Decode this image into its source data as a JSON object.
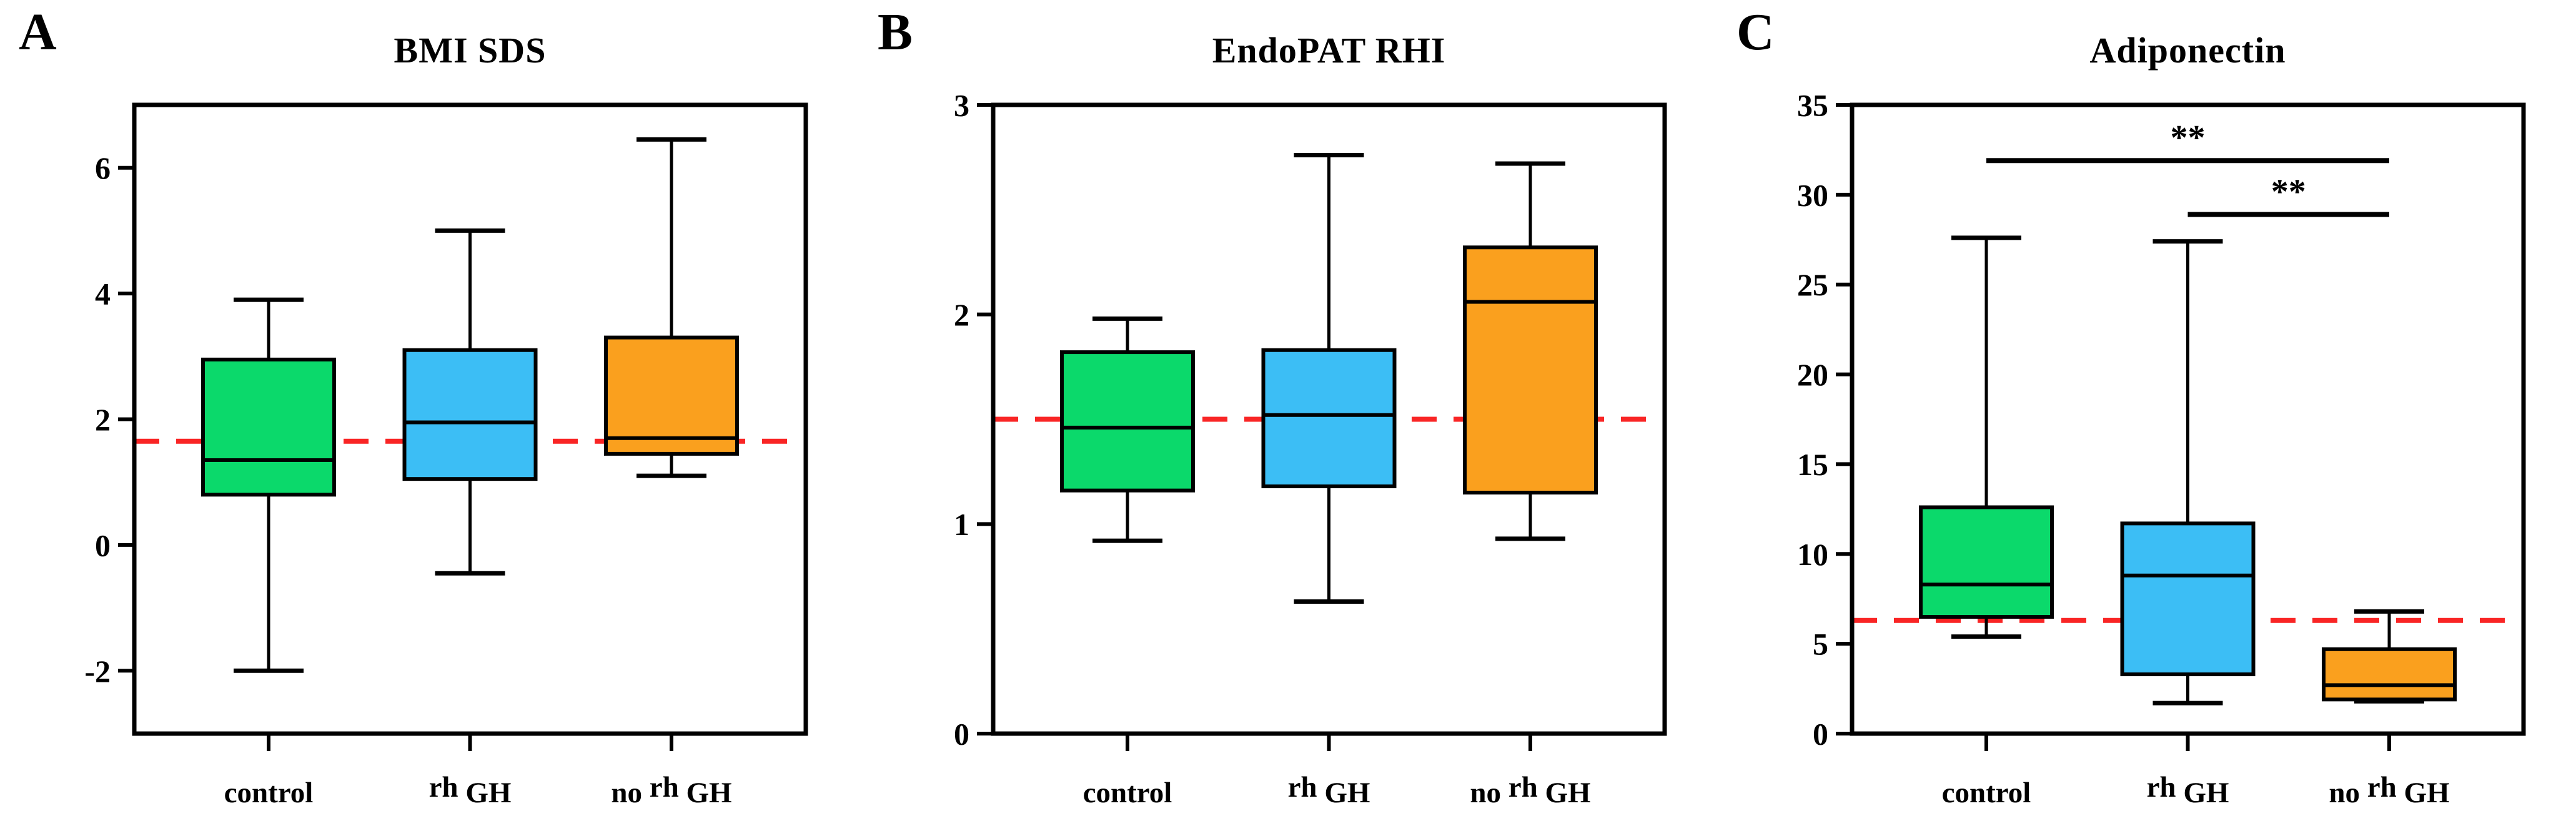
{
  "colors": {
    "control_fill": "#0BD96B",
    "rhgh_fill": "#3CBEF5",
    "norhgh_fill": "#FAA01E",
    "reference_line": "#F92525",
    "line": "#000000",
    "background": "#FFFFFF"
  },
  "chart_data": [
    {
      "type": "box",
      "panel_letter": "A",
      "title": "BMI SDS",
      "xlabel": "",
      "ylabel": "",
      "ylim": [
        -3,
        7
      ],
      "yticks": [
        -2,
        0,
        2,
        4,
        6
      ],
      "grid": false,
      "reference_line": 1.65,
      "categories": [
        "control",
        "rh GH",
        "no rh GH"
      ],
      "category_parts": [
        [
          {
            "text": "control",
            "raised": false
          }
        ],
        [
          {
            "text": "rh",
            "raised": true
          },
          {
            "text": " GH",
            "raised": false
          }
        ],
        [
          {
            "text": "no ",
            "raised": false
          },
          {
            "text": "rh",
            "raised": true
          },
          {
            "text": " GH",
            "raised": false
          }
        ]
      ],
      "series": [
        {
          "name": "control",
          "fill": "#0BD96B",
          "whisker_low": -2.0,
          "q1": 0.8,
          "median": 1.35,
          "q3": 2.95,
          "whisker_high": 3.9
        },
        {
          "name": "rh GH",
          "fill": "#3CBEF5",
          "whisker_low": -0.45,
          "q1": 1.05,
          "median": 1.95,
          "q3": 3.1,
          "whisker_high": 5.0
        },
        {
          "name": "no rh GH",
          "fill": "#FAA01E",
          "whisker_low": 1.1,
          "q1": 1.45,
          "median": 1.7,
          "q3": 3.3,
          "whisker_high": 6.45
        }
      ],
      "significance": []
    },
    {
      "type": "box",
      "panel_letter": "B",
      "title": "EndoPAT RHI",
      "xlabel": "",
      "ylabel": "",
      "ylim": [
        0,
        3
      ],
      "yticks": [
        0,
        1,
        2,
        3
      ],
      "grid": false,
      "reference_line": 1.5,
      "categories": [
        "control",
        "rh GH",
        "no rh GH"
      ],
      "category_parts": [
        [
          {
            "text": "control",
            "raised": false
          }
        ],
        [
          {
            "text": "rh",
            "raised": true
          },
          {
            "text": " GH",
            "raised": false
          }
        ],
        [
          {
            "text": "no ",
            "raised": false
          },
          {
            "text": "rh",
            "raised": true
          },
          {
            "text": " GH",
            "raised": false
          }
        ]
      ],
      "series": [
        {
          "name": "control",
          "fill": "#0BD96B",
          "whisker_low": 0.92,
          "q1": 1.16,
          "median": 1.46,
          "q3": 1.82,
          "whisker_high": 1.98
        },
        {
          "name": "rh GH",
          "fill": "#3CBEF5",
          "whisker_low": 0.63,
          "q1": 1.18,
          "median": 1.52,
          "q3": 1.83,
          "whisker_high": 2.76
        },
        {
          "name": "no rh GH",
          "fill": "#FAA01E",
          "whisker_low": 0.93,
          "q1": 1.15,
          "median": 2.06,
          "q3": 2.32,
          "whisker_high": 2.72
        }
      ],
      "significance": []
    },
    {
      "type": "box",
      "panel_letter": "C",
      "title": "Adiponectin",
      "xlabel": "",
      "ylabel": "",
      "ylim": [
        0,
        35
      ],
      "yticks": [
        0,
        5,
        10,
        15,
        20,
        25,
        30,
        35
      ],
      "grid": false,
      "reference_line": 6.3,
      "categories": [
        "control",
        "rh GH",
        "no rh GH"
      ],
      "category_parts": [
        [
          {
            "text": "control",
            "raised": false
          }
        ],
        [
          {
            "text": "rh",
            "raised": true
          },
          {
            "text": " GH",
            "raised": false
          }
        ],
        [
          {
            "text": "no ",
            "raised": false
          },
          {
            "text": "rh",
            "raised": true
          },
          {
            "text": " GH",
            "raised": false
          }
        ]
      ],
      "series": [
        {
          "name": "control",
          "fill": "#0BD96B",
          "whisker_low": 5.4,
          "q1": 6.5,
          "median": 8.3,
          "q3": 12.6,
          "whisker_high": 27.6
        },
        {
          "name": "rh GH",
          "fill": "#3CBEF5",
          "whisker_low": 1.7,
          "q1": 3.3,
          "median": 8.8,
          "q3": 11.7,
          "whisker_high": 27.4
        },
        {
          "name": "no rh GH",
          "fill": "#FAA01E",
          "whisker_low": 1.8,
          "q1": 1.9,
          "median": 2.7,
          "q3": 4.7,
          "whisker_high": 6.8
        }
      ],
      "significance": [
        {
          "pair": [
            0,
            2
          ],
          "label": "**",
          "y": 31.9
        },
        {
          "pair": [
            1,
            2
          ],
          "label": "**",
          "y": 28.9
        }
      ]
    }
  ]
}
